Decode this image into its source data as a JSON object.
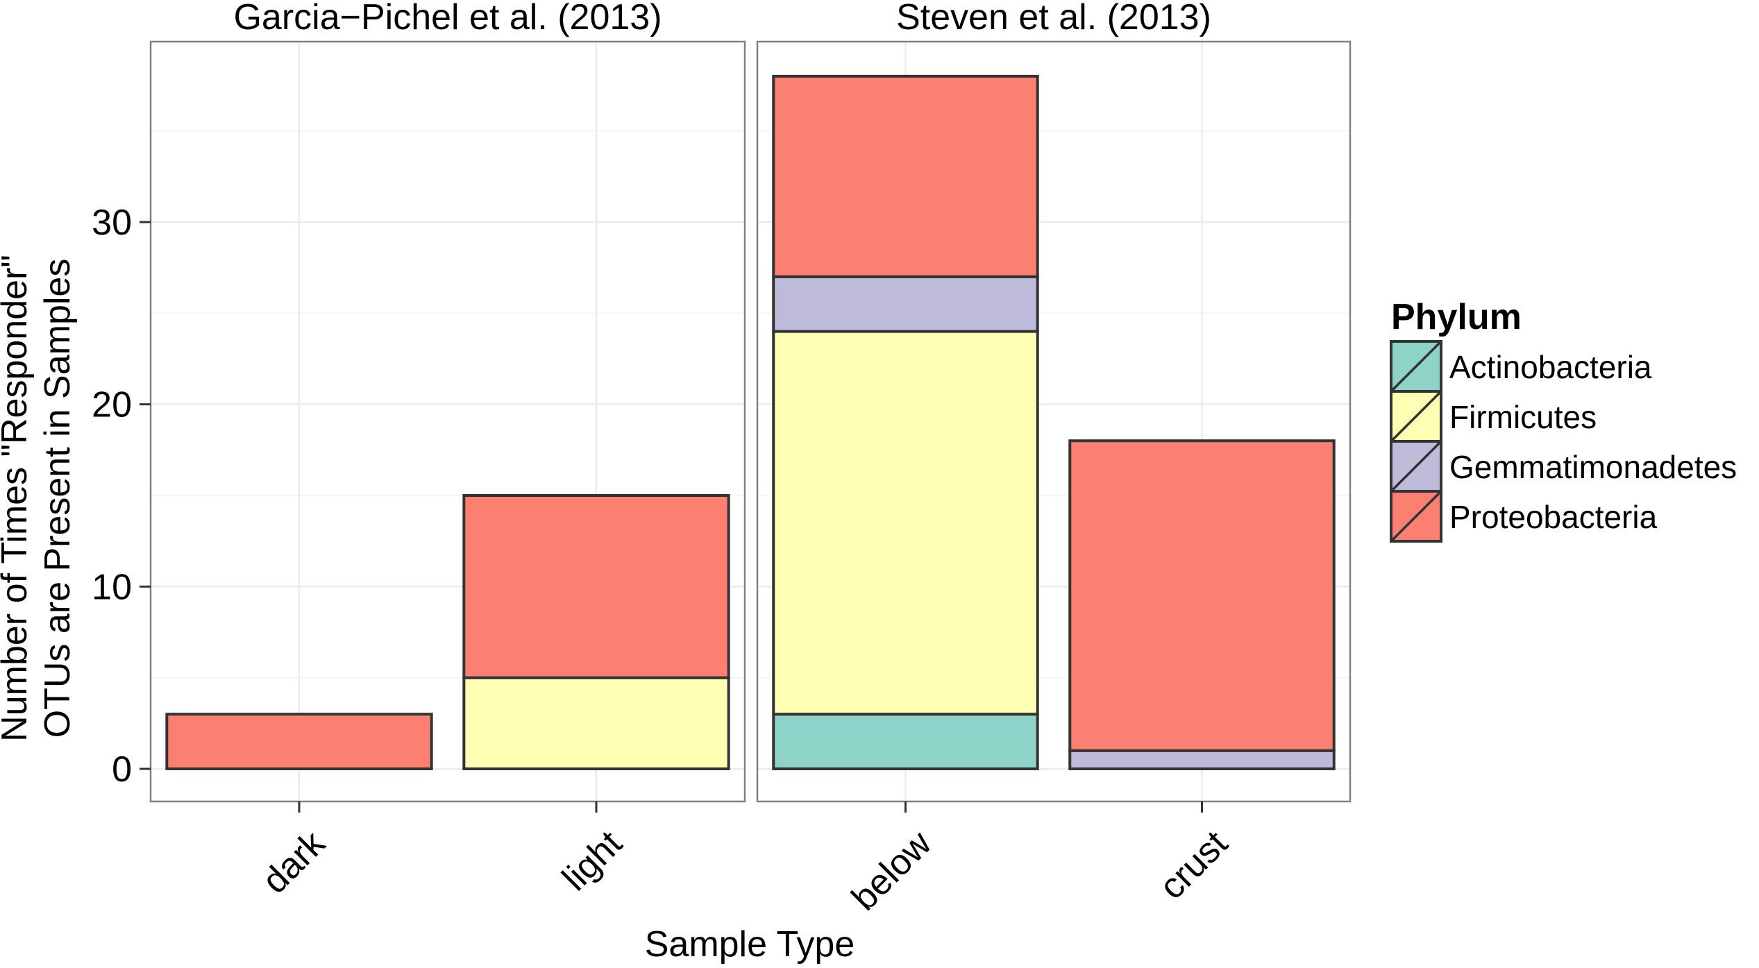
{
  "chart_data": {
    "type": "bar",
    "stacked": true,
    "xlabel": "Sample Type",
    "ylabel_lines": [
      "Number of Times \"Responder\"",
      "OTUs are Present in Samples"
    ],
    "ylim": [
      0,
      40
    ],
    "yticks": [
      0,
      10,
      20,
      30
    ],
    "grid": true,
    "legend": {
      "title": "Phylum",
      "placement": "right",
      "entries": [
        "Actinobacteria",
        "Firmicutes",
        "Gemmatimonadetes",
        "Proteobacteria"
      ]
    },
    "colors": {
      "Actinobacteria": "#8dd3c7",
      "Firmicutes": "#ffffb3",
      "Gemmatimonadetes": "#bebada",
      "Proteobacteria": "#fb8072"
    },
    "panels": [
      {
        "title": "Garcia−Pichel et al. (2013)",
        "categories": [
          "dark",
          "light"
        ],
        "series": [
          {
            "name": "Actinobacteria",
            "values": [
              0,
              0
            ]
          },
          {
            "name": "Firmicutes",
            "values": [
              0,
              5
            ]
          },
          {
            "name": "Gemmatimonadetes",
            "values": [
              0,
              0
            ]
          },
          {
            "name": "Proteobacteria",
            "values": [
              3,
              10
            ]
          }
        ]
      },
      {
        "title": "Steven et al. (2013)",
        "categories": [
          "below",
          "crust"
        ],
        "series": [
          {
            "name": "Actinobacteria",
            "values": [
              3,
              0
            ]
          },
          {
            "name": "Firmicutes",
            "values": [
              21,
              0
            ]
          },
          {
            "name": "Gemmatimonadetes",
            "values": [
              3,
              1
            ]
          },
          {
            "name": "Proteobacteria",
            "values": [
              11,
              17
            ]
          }
        ]
      }
    ]
  }
}
